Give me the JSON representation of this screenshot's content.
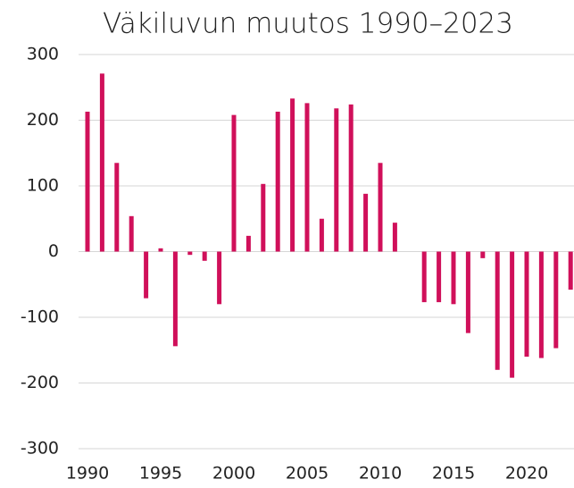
{
  "chart_data": {
    "type": "bar",
    "title": "Väkiluvun muutos 1990–2023",
    "categories": [
      1990,
      null,
      null,
      null,
      null,
      1995,
      null,
      null,
      null,
      null,
      2000,
      null,
      null,
      null,
      null,
      2005,
      null,
      null,
      null,
      null,
      2010,
      null,
      null,
      null,
      null,
      2015,
      null,
      null,
      null,
      null,
      2020,
      null,
      null,
      null
    ],
    "values": [
      213,
      271,
      135,
      54,
      -71,
      5,
      -144,
      -5,
      -14,
      -80,
      208,
      24,
      103,
      213,
      233,
      226,
      50,
      218,
      224,
      88,
      135,
      44,
      null,
      -77,
      -77,
      -80,
      -124,
      -10,
      -180,
      -192,
      -160,
      -162,
      -147,
      -58
    ],
    "color": "#d0105a",
    "ylim": [
      -300,
      300
    ],
    "yticks": [
      -300,
      -200,
      -100,
      0,
      100,
      200,
      300
    ],
    "grid": true
  }
}
